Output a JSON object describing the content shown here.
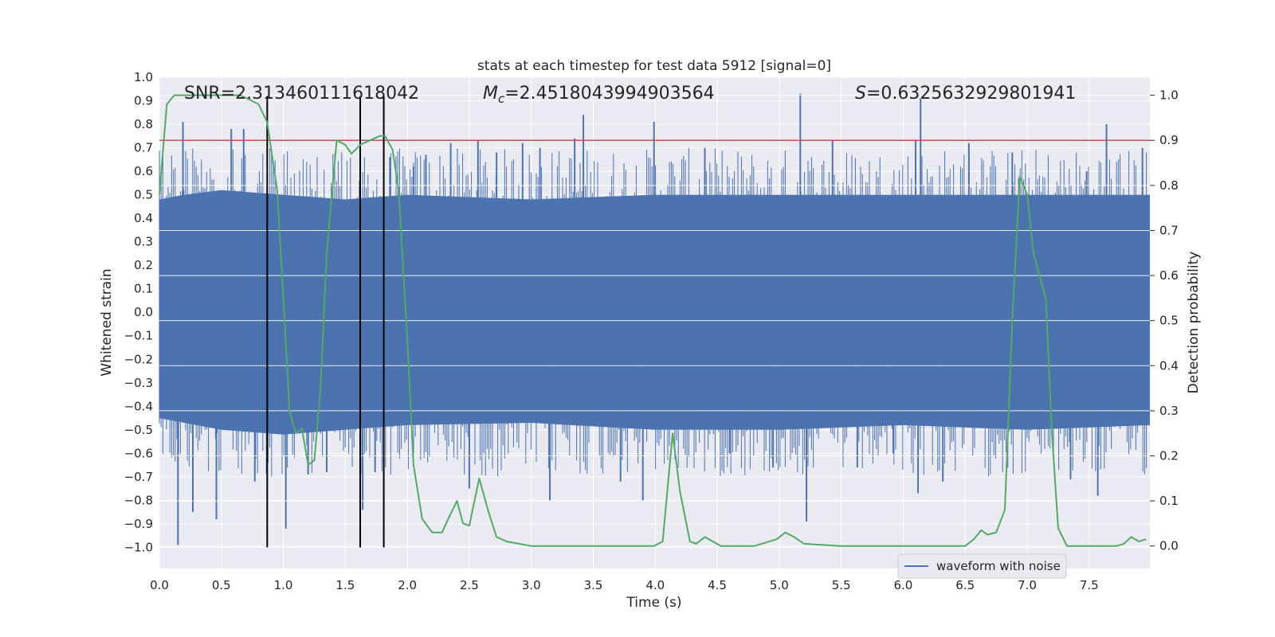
{
  "chart_data": {
    "type": "line",
    "title": "stats at each timestep for test data 5912 [signal=0]",
    "xlabel": "Time (s)",
    "ylabel_left": "Whitened strain",
    "ylabel_right": "Detection probability",
    "xlim": [
      0.0,
      7.99
    ],
    "ylim_left": [
      -1.09,
      1.0
    ],
    "ylim_right": [
      -0.05,
      1.04
    ],
    "x_ticks": [
      0.0,
      0.5,
      1.0,
      1.5,
      2.0,
      2.5,
      3.0,
      3.5,
      4.0,
      4.5,
      5.0,
      5.5,
      6.0,
      6.5,
      7.0,
      7.5
    ],
    "x_tick_labels": [
      "0.0",
      "0.5",
      "1.0",
      "1.5",
      "2.0",
      "2.5",
      "3.0",
      "3.5",
      "4.0",
      "4.5",
      "5.0",
      "5.5",
      "6.0",
      "6.5",
      "7.0",
      "7.5"
    ],
    "y_left_ticks": [
      1.0,
      0.9,
      0.8,
      0.7,
      0.6,
      0.5,
      0.4,
      0.3,
      0.2,
      0.1,
      0.0,
      -0.1,
      -0.2,
      -0.3,
      -0.4,
      -0.5,
      -0.6,
      -0.7,
      -0.8,
      -0.9,
      -1.0
    ],
    "y_left_tick_labels": [
      "1.0",
      "0.9",
      "0.8",
      "0.7",
      "0.6",
      "0.5",
      "0.4",
      "0.3",
      "0.2",
      "0.1",
      "0.0",
      "−0.1",
      "−0.2",
      "−0.3",
      "−0.4",
      "−0.5",
      "−0.6",
      "−0.7",
      "−0.8",
      "−0.9",
      "−1.0"
    ],
    "y_right_ticks": [
      1.0,
      0.9,
      0.8,
      0.7,
      0.6,
      0.5,
      0.4,
      0.3,
      0.2,
      0.1,
      0.0
    ],
    "y_right_tick_labels": [
      "1.0",
      "0.9",
      "0.8",
      "0.7",
      "0.6",
      "0.5",
      "0.4",
      "0.3",
      "0.2",
      "0.1",
      "0.0"
    ],
    "annotations": {
      "snr": "SNR=2.313460111618042",
      "mc_symbol": "M",
      "mc_sub": "c",
      "mc_value": "=2.4518043994903564",
      "s_symbol": "S",
      "s_value": "=0.6325632929801941"
    },
    "threshold": {
      "value": 0.9,
      "axis": "right",
      "color": "#c44e52"
    },
    "vertical_markers": [
      {
        "x": 0.87,
        "y_from": -1.0,
        "y_to": 0.92
      },
      {
        "x": 1.62,
        "y_from": -1.0,
        "y_to": 0.92
      },
      {
        "x": 1.81,
        "y_from": -1.0,
        "y_to": 0.92
      }
    ],
    "series": [
      {
        "name": "waveform with noise",
        "axis": "left",
        "color": "#4c72b0",
        "envelope_upper": [
          [
            0.0,
            0.48
          ],
          [
            0.2,
            0.5
          ],
          [
            0.5,
            0.52
          ],
          [
            1.0,
            0.5
          ],
          [
            1.5,
            0.48
          ],
          [
            2.0,
            0.5
          ],
          [
            3.0,
            0.48
          ],
          [
            4.0,
            0.5
          ],
          [
            5.0,
            0.5
          ],
          [
            6.0,
            0.5
          ],
          [
            7.0,
            0.5
          ],
          [
            7.99,
            0.5
          ]
        ],
        "envelope_lower": [
          [
            0.0,
            -0.45
          ],
          [
            0.5,
            -0.5
          ],
          [
            1.0,
            -0.52
          ],
          [
            1.5,
            -0.5
          ],
          [
            2.0,
            -0.48
          ],
          [
            3.0,
            -0.47
          ],
          [
            4.0,
            -0.5
          ],
          [
            5.0,
            -0.5
          ],
          [
            6.0,
            -0.48
          ],
          [
            7.0,
            -0.5
          ],
          [
            7.99,
            -0.48
          ]
        ],
        "spikes": [
          [
            0.15,
            -0.99
          ],
          [
            0.19,
            0.81
          ],
          [
            0.27,
            -0.85
          ],
          [
            0.46,
            -0.88
          ],
          [
            0.58,
            0.78
          ],
          [
            0.68,
            0.78
          ],
          [
            0.77,
            -0.72
          ],
          [
            1.02,
            -0.92
          ],
          [
            1.2,
            -0.69
          ],
          [
            1.35,
            -0.68
          ],
          [
            1.64,
            -0.84
          ],
          [
            1.74,
            -0.68
          ],
          [
            1.86,
            0.66
          ],
          [
            2.05,
            0.62
          ],
          [
            2.15,
            0.67
          ],
          [
            2.35,
            0.72
          ],
          [
            2.5,
            -0.75
          ],
          [
            2.57,
            0.73
          ],
          [
            2.72,
            0.68
          ],
          [
            2.93,
            0.72
          ],
          [
            3.07,
            0.7
          ],
          [
            3.15,
            -0.8
          ],
          [
            3.35,
            0.74
          ],
          [
            3.42,
            0.84
          ],
          [
            3.72,
            -0.72
          ],
          [
            3.9,
            -0.8
          ],
          [
            3.99,
            0.81
          ],
          [
            4.4,
            0.7
          ],
          [
            4.6,
            -0.6
          ],
          [
            4.95,
            -0.66
          ],
          [
            5.17,
            0.93
          ],
          [
            5.22,
            -0.89
          ],
          [
            5.43,
            0.73
          ],
          [
            5.63,
            -0.66
          ],
          [
            5.92,
            -0.6
          ],
          [
            6.1,
            0.73
          ],
          [
            6.12,
            -0.77
          ],
          [
            6.14,
            0.91
          ],
          [
            6.32,
            -0.72
          ],
          [
            6.53,
            0.72
          ],
          [
            6.88,
            0.68
          ],
          [
            7.35,
            -0.71
          ],
          [
            7.48,
            0.6
          ],
          [
            7.57,
            -0.78
          ],
          [
            7.64,
            0.8
          ],
          [
            7.93,
            0.7
          ]
        ]
      },
      {
        "name": "detection probability",
        "axis": "right",
        "color": "#55a868",
        "points": [
          [
            0.0,
            0.78
          ],
          [
            0.06,
            0.98
          ],
          [
            0.12,
            1.0
          ],
          [
            0.3,
            1.0
          ],
          [
            0.5,
            1.0
          ],
          [
            0.65,
            1.0
          ],
          [
            0.73,
            0.99
          ],
          [
            0.8,
            0.98
          ],
          [
            0.87,
            0.94
          ],
          [
            0.95,
            0.79
          ],
          [
            1.0,
            0.55
          ],
          [
            1.05,
            0.3
          ],
          [
            1.1,
            0.25
          ],
          [
            1.15,
            0.26
          ],
          [
            1.2,
            0.18
          ],
          [
            1.25,
            0.19
          ],
          [
            1.3,
            0.35
          ],
          [
            1.35,
            0.65
          ],
          [
            1.43,
            0.9
          ],
          [
            1.5,
            0.89
          ],
          [
            1.55,
            0.87
          ],
          [
            1.62,
            0.89
          ],
          [
            1.7,
            0.9
          ],
          [
            1.78,
            0.91
          ],
          [
            1.82,
            0.91
          ],
          [
            1.88,
            0.88
          ],
          [
            1.93,
            0.79
          ],
          [
            2.0,
            0.46
          ],
          [
            2.05,
            0.18
          ],
          [
            2.12,
            0.06
          ],
          [
            2.2,
            0.03
          ],
          [
            2.28,
            0.03
          ],
          [
            2.33,
            0.06
          ],
          [
            2.4,
            0.1
          ],
          [
            2.45,
            0.05
          ],
          [
            2.5,
            0.045
          ],
          [
            2.58,
            0.15
          ],
          [
            2.65,
            0.08
          ],
          [
            2.72,
            0.02
          ],
          [
            2.8,
            0.01
          ],
          [
            3.0,
            0.0
          ],
          [
            3.5,
            0.0
          ],
          [
            3.99,
            0.0
          ],
          [
            4.06,
            0.01
          ],
          [
            4.14,
            0.25
          ],
          [
            4.2,
            0.12
          ],
          [
            4.28,
            0.01
          ],
          [
            4.33,
            0.005
          ],
          [
            4.4,
            0.02
          ],
          [
            4.53,
            0.0
          ],
          [
            4.8,
            0.0
          ],
          [
            4.98,
            0.015
          ],
          [
            5.05,
            0.03
          ],
          [
            5.12,
            0.02
          ],
          [
            5.2,
            0.005
          ],
          [
            5.5,
            0.0
          ],
          [
            6.0,
            0.0
          ],
          [
            6.5,
            0.0
          ],
          [
            6.57,
            0.015
          ],
          [
            6.63,
            0.035
          ],
          [
            6.68,
            0.025
          ],
          [
            6.75,
            0.03
          ],
          [
            6.82,
            0.08
          ],
          [
            6.88,
            0.5
          ],
          [
            6.94,
            0.82
          ],
          [
            7.0,
            0.78
          ],
          [
            7.05,
            0.65
          ],
          [
            7.1,
            0.6
          ],
          [
            7.15,
            0.55
          ],
          [
            7.2,
            0.25
          ],
          [
            7.25,
            0.04
          ],
          [
            7.32,
            0.0
          ],
          [
            7.5,
            0.0
          ],
          [
            7.72,
            0.0
          ],
          [
            7.78,
            0.005
          ],
          [
            7.84,
            0.02
          ],
          [
            7.9,
            0.01
          ],
          [
            7.96,
            0.015
          ]
        ]
      }
    ],
    "legend": {
      "entries": [
        "waveform with noise"
      ],
      "placement": "lower-right"
    }
  }
}
